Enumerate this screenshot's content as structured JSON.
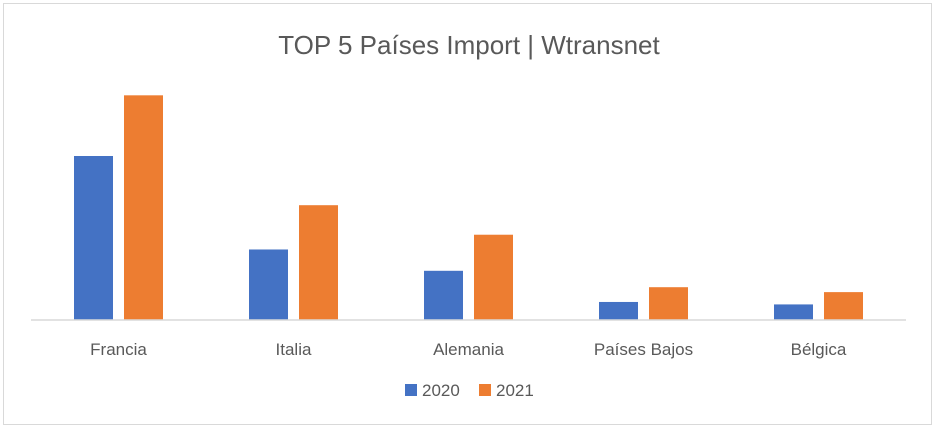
{
  "chart_data": {
    "type": "bar",
    "title": "TOP 5 Países Import | Wtransnet",
    "categories": [
      "Francia",
      "Italia",
      "Alemania",
      "Países Bajos",
      "Bélgica"
    ],
    "series": [
      {
        "name": "2020",
        "values": [
          100,
          43,
          30,
          11,
          9.5
        ]
      },
      {
        "name": "2021",
        "values": [
          137,
          70,
          52,
          20,
          17
        ]
      }
    ],
    "ylim": [
      0,
      150
    ],
    "xlabel": "",
    "ylabel": "",
    "grid": false,
    "legend": "bottom",
    "colors": [
      "#4472c4",
      "#ed7d31"
    ]
  }
}
